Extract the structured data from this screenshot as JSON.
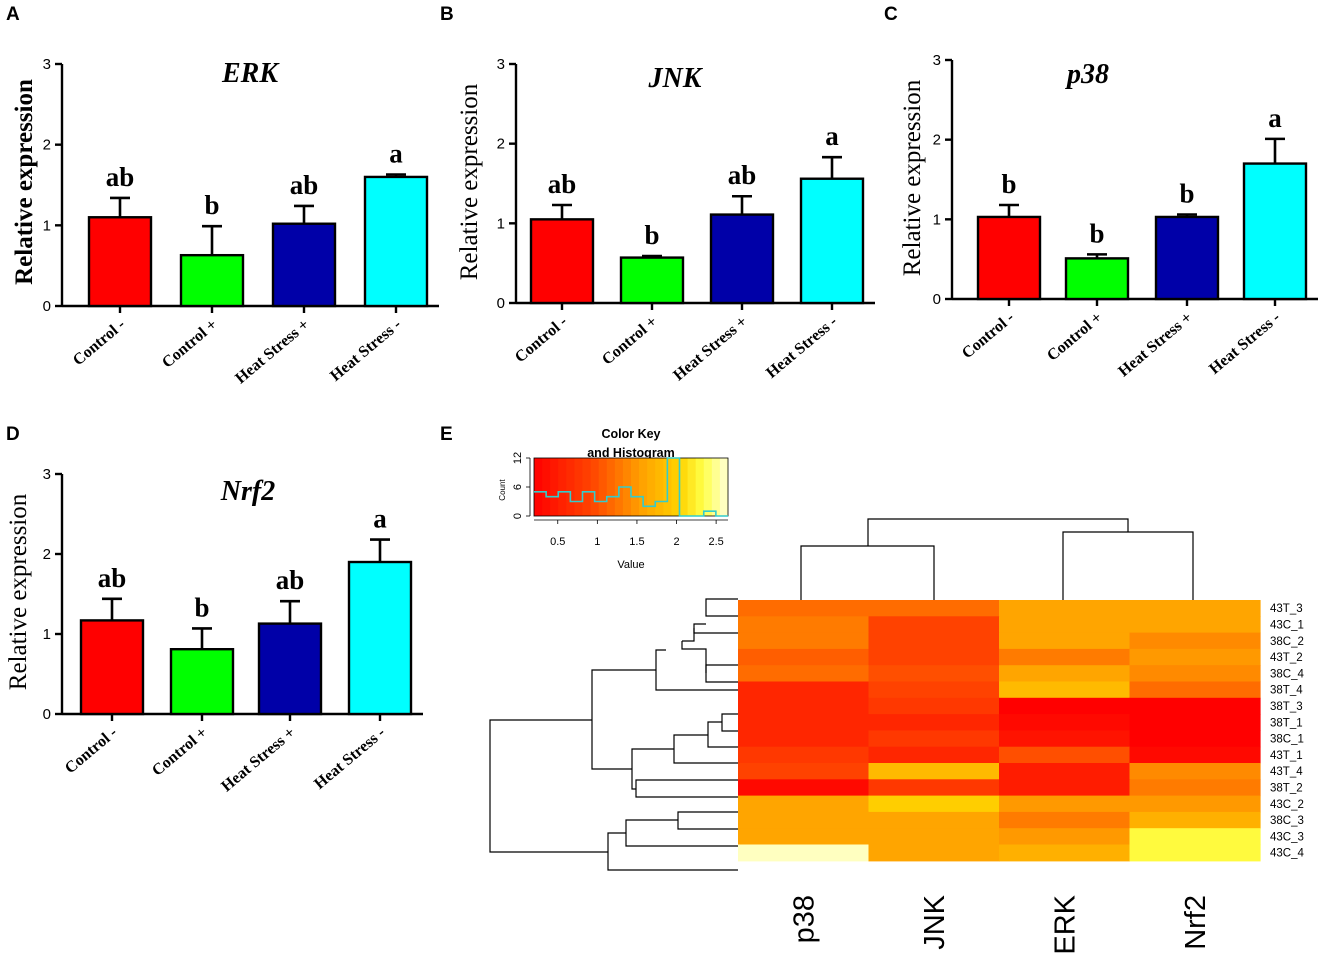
{
  "panels": {
    "A": "A",
    "B": "B",
    "C": "C",
    "D": "D",
    "E": "E"
  },
  "chart_data": [
    {
      "type": "bar",
      "panel": "A",
      "title": "ERK",
      "ylabel": "Relative expression",
      "ylabel_bold": true,
      "categories": [
        "Control -",
        "Control +",
        "Heat Stress +",
        "Heat Stress -"
      ],
      "values": [
        1.1,
        0.63,
        1.02,
        1.6
      ],
      "errors": [
        0.24,
        0.36,
        0.22,
        0.03
      ],
      "significance": [
        "ab",
        "b",
        "ab",
        "a"
      ],
      "colors": [
        "#ff0000",
        "#00ff00",
        "#0000a8",
        "#00ffff"
      ],
      "ylim": [
        0,
        3
      ],
      "yticks": [
        "0",
        "1",
        "2",
        "3"
      ]
    },
    {
      "type": "bar",
      "panel": "B",
      "title": "JNK",
      "ylabel": "Relative expression",
      "ylabel_bold": false,
      "categories": [
        "Control -",
        "Control +",
        "Heat Stress +",
        "Heat Stress -"
      ],
      "values": [
        1.05,
        0.57,
        1.11,
        1.56
      ],
      "errors": [
        0.18,
        0.02,
        0.23,
        0.27
      ],
      "significance": [
        "ab",
        "b",
        "ab",
        "a"
      ],
      "colors": [
        "#ff0000",
        "#00ff00",
        "#0000a8",
        "#00ffff"
      ],
      "ylim": [
        0,
        3
      ],
      "yticks": [
        "0",
        "1",
        "2",
        "3"
      ]
    },
    {
      "type": "bar",
      "panel": "C",
      "title": "p38",
      "ylabel": "Relative expression",
      "ylabel_bold": false,
      "categories": [
        "Control -",
        "Control +",
        "Heat Stress +",
        "Heat Stress -"
      ],
      "values": [
        1.03,
        0.51,
        1.03,
        1.7
      ],
      "errors": [
        0.15,
        0.05,
        0.03,
        0.31
      ],
      "significance": [
        "b",
        "b",
        "b",
        "a"
      ],
      "colors": [
        "#ff0000",
        "#00ff00",
        "#0000a8",
        "#00ffff"
      ],
      "ylim": [
        0,
        3
      ],
      "yticks": [
        "0",
        "1",
        "2",
        "3"
      ]
    },
    {
      "type": "bar",
      "panel": "D",
      "title": "Nrf2",
      "ylabel": "Relative expression",
      "ylabel_bold": false,
      "categories": [
        "Control -",
        "Control +",
        "Heat Stress +",
        "Heat Stress -"
      ],
      "values": [
        1.17,
        0.81,
        1.13,
        1.9
      ],
      "errors": [
        0.27,
        0.26,
        0.28,
        0.28
      ],
      "significance": [
        "ab",
        "b",
        "ab",
        "a"
      ],
      "colors": [
        "#ff0000",
        "#00ff00",
        "#0000a8",
        "#00ffff"
      ],
      "ylim": [
        0,
        3
      ],
      "yticks": [
        "0",
        "1",
        "2",
        "3"
      ]
    },
    {
      "type": "heatmap",
      "panel": "E",
      "columns": [
        "p38",
        "JNK",
        "ERK",
        "Nrf2"
      ],
      "rows": [
        "43T_3",
        "43C_1",
        "38C_2",
        "43T_2",
        "38C_4",
        "38T_4",
        "38T_3",
        "38T_1",
        "38C_1",
        "43T_1",
        "43T_4",
        "38T_2",
        "43C_2",
        "38C_3",
        "43C_3",
        "43C_4"
      ],
      "values": [
        [
          1.2,
          1.2,
          1.6,
          1.6
        ],
        [
          1.3,
          0.9,
          1.6,
          1.6
        ],
        [
          1.3,
          0.9,
          1.6,
          1.4
        ],
        [
          1.1,
          0.9,
          1.3,
          1.5
        ],
        [
          1.2,
          1.0,
          1.6,
          1.4
        ],
        [
          0.6,
          0.9,
          1.8,
          1.2
        ],
        [
          0.6,
          0.8,
          0.2,
          0.2
        ],
        [
          0.6,
          0.6,
          0.3,
          0.2
        ],
        [
          0.6,
          0.8,
          0.4,
          0.2
        ],
        [
          0.8,
          0.6,
          1.0,
          0.3
        ],
        [
          0.9,
          1.8,
          0.5,
          1.4
        ],
        [
          0.3,
          0.8,
          0.5,
          1.3
        ],
        [
          1.6,
          2.0,
          1.5,
          1.5
        ],
        [
          1.6,
          1.6,
          1.3,
          1.7
        ],
        [
          1.6,
          1.6,
          1.5,
          2.3
        ],
        [
          2.6,
          1.6,
          1.7,
          2.3
        ]
      ],
      "color_key": {
        "title_line1": "Color Key",
        "title_line2": "and Histogram",
        "count_label": "Count",
        "value_label": "Value",
        "x_ticks": [
          "0.5",
          "1",
          "1.5",
          "2",
          "2.5"
        ],
        "x_tick_values": [
          0.5,
          1,
          1.5,
          2,
          2.5
        ],
        "x_range": [
          0.2,
          2.65
        ],
        "y_ticks": [
          "0",
          "6",
          "12"
        ],
        "y_tick_values": [
          0,
          6,
          12
        ],
        "y_range": [
          0,
          12
        ],
        "histogram_steps": [
          5,
          4,
          5,
          3,
          5,
          3,
          4,
          6,
          4,
          2,
          3,
          12,
          0,
          0,
          1,
          0
        ]
      }
    }
  ]
}
